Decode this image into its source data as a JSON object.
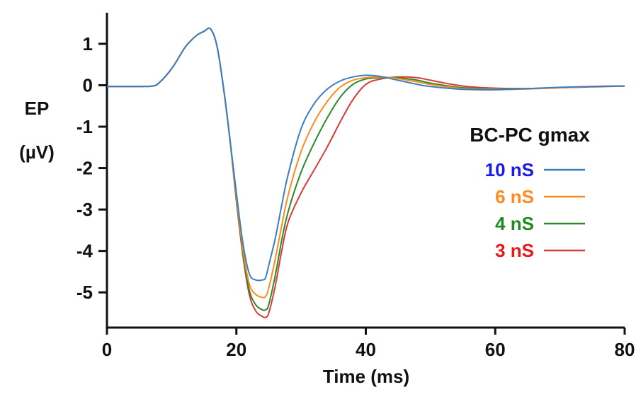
{
  "chart_data": {
    "type": "line",
    "title": "",
    "xlabel": "Time (ms)",
    "ylabel_line1": "EP",
    "ylabel_line2": "(µV)",
    "xlim": [
      0,
      80
    ],
    "ylim": [
      -5.85,
      1.75
    ],
    "xticks": [
      0,
      20,
      40,
      60,
      80
    ],
    "yticks": [
      1,
      0,
      -1,
      -2,
      -3,
      -4,
      -5
    ],
    "grid": false,
    "legend_title": "BC-PC gmax",
    "legend_position": "right",
    "series": [
      {
        "name": "10 nS",
        "color": "#3a7fc1",
        "label_color": "#1a1ae6",
        "x": [
          0,
          5,
          7,
          8,
          10,
          12,
          13,
          14,
          15,
          16,
          17,
          18,
          19,
          20,
          21,
          22,
          23,
          24,
          24.5,
          25,
          26,
          27,
          28,
          30,
          32,
          34,
          36,
          38,
          40,
          42,
          45,
          48,
          50,
          55,
          60,
          65,
          70,
          75,
          80
        ],
        "y": [
          -0.03,
          -0.03,
          -0.02,
          0.05,
          0.4,
          0.9,
          1.08,
          1.22,
          1.3,
          1.36,
          0.95,
          -0.05,
          -1.3,
          -2.6,
          -3.8,
          -4.55,
          -4.7,
          -4.7,
          -4.65,
          -4.35,
          -3.7,
          -2.9,
          -2.15,
          -1.05,
          -0.45,
          -0.1,
          0.1,
          0.2,
          0.24,
          0.22,
          0.12,
          0.02,
          -0.03,
          -0.1,
          -0.11,
          -0.08,
          -0.05,
          -0.03,
          -0.02
        ]
      },
      {
        "name": "6 nS",
        "color": "#ff8a1e",
        "label_color": "#ff8a1e",
        "x": [
          0,
          5,
          7,
          8,
          10,
          12,
          13,
          14,
          15,
          16,
          17,
          18,
          19,
          20,
          21,
          22,
          23,
          24,
          24.5,
          25,
          26,
          27,
          28,
          30,
          32,
          34,
          36,
          38,
          40,
          42,
          45,
          48,
          50,
          55,
          60,
          65,
          70,
          75,
          80
        ],
        "y": [
          -0.03,
          -0.03,
          -0.02,
          0.05,
          0.4,
          0.9,
          1.08,
          1.22,
          1.3,
          1.36,
          0.95,
          -0.05,
          -1.3,
          -2.7,
          -3.95,
          -4.8,
          -5.05,
          -5.12,
          -5.1,
          -4.9,
          -4.2,
          -3.4,
          -2.65,
          -1.6,
          -0.9,
          -0.4,
          -0.05,
          0.12,
          0.18,
          0.2,
          0.16,
          0.08,
          0.02,
          -0.08,
          -0.1,
          -0.09,
          -0.06,
          -0.03,
          -0.02
        ]
      },
      {
        "name": "4 nS",
        "color": "#2a8a2a",
        "label_color": "#1f8a1f",
        "x": [
          0,
          5,
          7,
          8,
          10,
          12,
          13,
          14,
          15,
          16,
          17,
          18,
          19,
          20,
          21,
          22,
          23,
          24,
          24.5,
          25,
          26,
          27,
          28,
          30,
          32,
          34,
          36,
          38,
          40,
          42,
          45,
          48,
          50,
          55,
          60,
          65,
          70,
          75,
          80
        ],
        "y": [
          -0.03,
          -0.03,
          -0.02,
          0.05,
          0.4,
          0.9,
          1.08,
          1.22,
          1.3,
          1.36,
          0.95,
          -0.05,
          -1.3,
          -2.75,
          -4.05,
          -4.95,
          -5.3,
          -5.42,
          -5.42,
          -5.3,
          -4.6,
          -3.75,
          -3.05,
          -2.1,
          -1.4,
          -0.8,
          -0.3,
          0.02,
          0.15,
          0.18,
          0.18,
          0.12,
          0.05,
          -0.06,
          -0.09,
          -0.08,
          -0.06,
          -0.03,
          -0.02
        ]
      },
      {
        "name": "3 nS",
        "color": "#d93a3a",
        "label_color": "#e61a1a",
        "x": [
          0,
          5,
          7,
          8,
          10,
          12,
          13,
          14,
          15,
          16,
          17,
          18,
          19,
          20,
          21,
          22,
          23,
          24,
          24.5,
          25,
          26,
          27,
          28,
          30,
          32,
          34,
          36,
          38,
          40,
          42,
          45,
          48,
          50,
          55,
          60,
          65,
          70,
          75,
          80
        ],
        "y": [
          -0.03,
          -0.03,
          -0.02,
          0.05,
          0.4,
          0.9,
          1.08,
          1.22,
          1.3,
          1.36,
          0.95,
          -0.05,
          -1.3,
          -2.8,
          -4.1,
          -5.05,
          -5.45,
          -5.58,
          -5.6,
          -5.5,
          -4.85,
          -4.0,
          -3.3,
          -2.6,
          -2.05,
          -1.5,
          -0.9,
          -0.35,
          0.02,
          0.14,
          0.2,
          0.18,
          0.12,
          -0.02,
          -0.07,
          -0.08,
          -0.06,
          -0.04,
          -0.02
        ]
      }
    ]
  }
}
